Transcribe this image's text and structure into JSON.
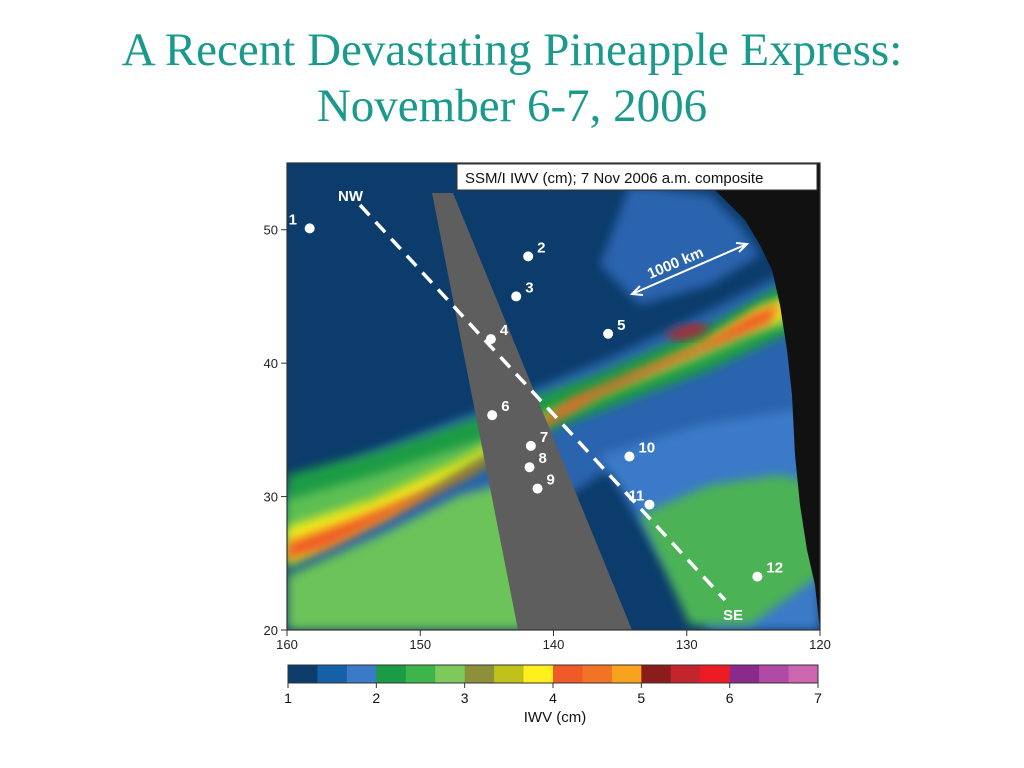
{
  "slide": {
    "title_line1": "A Recent Devastating Pineapple Express:",
    "title_line2": "November 6-7, 2006"
  },
  "map": {
    "caption": "SSM/I IWV (cm); 7 Nov 2006  a.m. composite",
    "route_start_label": "NW",
    "route_end_label": "SE",
    "distance_label": "1000 km",
    "lat_ticks": [
      "50",
      "40",
      "30",
      "20"
    ],
    "lon_ticks": [
      "160",
      "150",
      "140",
      "130",
      "120"
    ],
    "stations": [
      {
        "label": "1",
        "lon": 158.3,
        "lat": 50.1
      },
      {
        "label": "2",
        "lon": 141.9,
        "lat": 48.0
      },
      {
        "label": "3",
        "lon": 142.8,
        "lat": 45.0
      },
      {
        "label": "4",
        "lon": 144.7,
        "lat": 41.8
      },
      {
        "label": "5",
        "lon": 135.9,
        "lat": 42.2
      },
      {
        "label": "6",
        "lon": 144.6,
        "lat": 36.1
      },
      {
        "label": "7",
        "lon": 141.7,
        "lat": 33.8
      },
      {
        "label": "8",
        "lon": 141.8,
        "lat": 32.2
      },
      {
        "label": "9",
        "lon": 141.2,
        "lat": 30.6
      },
      {
        "label": "10",
        "lon": 134.3,
        "lat": 33.0
      },
      {
        "label": "11",
        "lon": 132.8,
        "lat": 29.4
      },
      {
        "label": "12",
        "lon": 124.7,
        "lat": 24.0
      }
    ],
    "colors": {
      "deep_ocean": "#0b3c6b",
      "swath_gap": "#5e5e5e",
      "land": "#111111"
    }
  },
  "colorbar": {
    "label": "IWV (cm)",
    "ticks": [
      "1",
      "2",
      "3",
      "4",
      "5",
      "6",
      "7"
    ],
    "colors": [
      "#0b3c6b",
      "#1660a8",
      "#3a7ac8",
      "#1b9b44",
      "#3cb64a",
      "#7dc95b",
      "#8d8f3a",
      "#c0c21a",
      "#ffef1d",
      "#f05a28",
      "#f27324",
      "#f8a21d",
      "#8b1c1c",
      "#c2262c",
      "#ed1c24",
      "#8a2a8a",
      "#b04aa4",
      "#cc66b0"
    ]
  }
}
